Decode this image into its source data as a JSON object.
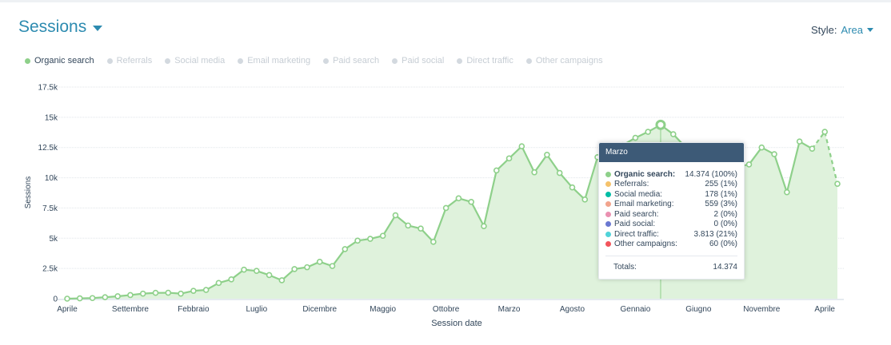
{
  "header": {
    "title": "Sessions",
    "style_label": "Style:",
    "style_value": "Area"
  },
  "legend": [
    {
      "label": "Organic search",
      "active": true
    },
    {
      "label": "Referrals",
      "active": false
    },
    {
      "label": "Social media",
      "active": false
    },
    {
      "label": "Email marketing",
      "active": false
    },
    {
      "label": "Paid search",
      "active": false
    },
    {
      "label": "Paid social",
      "active": false
    },
    {
      "label": "Direct traffic",
      "active": false
    },
    {
      "label": "Other campaigns",
      "active": false
    }
  ],
  "colors": {
    "series": "#8ed08a",
    "area": "#dff2dc",
    "grid": "#e1e5ea",
    "axis_text": "#33475b",
    "tooltip_header": "#3d5a77"
  },
  "tooltip": {
    "title": "Marzo",
    "rows": [
      {
        "label": "Organic search:",
        "value": "14.374 (100%)",
        "color": "#8ed08a",
        "bold": true
      },
      {
        "label": "Referrals:",
        "value": "255 (1%)",
        "color": "#f5c26b"
      },
      {
        "label": "Social media:",
        "value": "178 (1%)",
        "color": "#00bda5"
      },
      {
        "label": "Email marketing:",
        "value": "559 (3%)",
        "color": "#f2a48d"
      },
      {
        "label": "Paid search:",
        "value": "2 (0%)",
        "color": "#ea90b1"
      },
      {
        "label": "Paid social:",
        "value": "0 (0%)",
        "color": "#6a78d1"
      },
      {
        "label": "Direct traffic:",
        "value": "3.813 (21%)",
        "color": "#51d3d9"
      },
      {
        "label": "Other campaigns:",
        "value": "60 (0%)",
        "color": "#f2545b"
      }
    ],
    "total_label": "Totals:",
    "total_value": "14.374"
  },
  "chart_data": {
    "type": "area",
    "xlabel": "Session date",
    "ylabel": "Sessions",
    "ylim": [
      0,
      17500
    ],
    "yticks": [
      0,
      2500,
      5000,
      7500,
      10000,
      12500,
      15000,
      17500
    ],
    "ytick_labels": [
      "0",
      "2.5k",
      "5k",
      "7.5k",
      "10k",
      "12.5k",
      "15k",
      "17.5k"
    ],
    "xtick_labels": [
      {
        "label": "Aprile",
        "index": 0
      },
      {
        "label": "Settembre",
        "index": 5
      },
      {
        "label": "Febbraio",
        "index": 10
      },
      {
        "label": "Luglio",
        "index": 15
      },
      {
        "label": "Dicembre",
        "index": 20
      },
      {
        "label": "Maggio",
        "index": 25
      },
      {
        "label": "Ottobre",
        "index": 30
      },
      {
        "label": "Marzo",
        "index": 35
      },
      {
        "label": "Agosto",
        "index": 40
      },
      {
        "label": "Gennaio",
        "index": 45
      },
      {
        "label": "Giugno",
        "index": 50
      },
      {
        "label": "Novembre",
        "index": 55
      },
      {
        "label": "Aprile",
        "index": 60
      }
    ],
    "highlight_index": 47,
    "dashed_from_index": 59,
    "grid": true,
    "legend": "top-left",
    "series": [
      {
        "name": "Organic search",
        "values": [
          0,
          30,
          50,
          120,
          200,
          300,
          420,
          480,
          490,
          420,
          650,
          720,
          1300,
          1600,
          2400,
          2300,
          1950,
          1520,
          2450,
          2600,
          3050,
          2700,
          4100,
          4800,
          4950,
          5200,
          6900,
          6050,
          5800,
          4700,
          7500,
          8300,
          8000,
          6000,
          10600,
          11600,
          12600,
          10450,
          11900,
          10400,
          9200,
          8200,
          11700,
          12000,
          12700,
          13300,
          13800,
          14374,
          13600,
          12500,
          12000,
          11500,
          11200,
          10900,
          11100,
          12500,
          11950,
          8800,
          13000,
          12400,
          13800,
          9500
        ]
      }
    ]
  }
}
